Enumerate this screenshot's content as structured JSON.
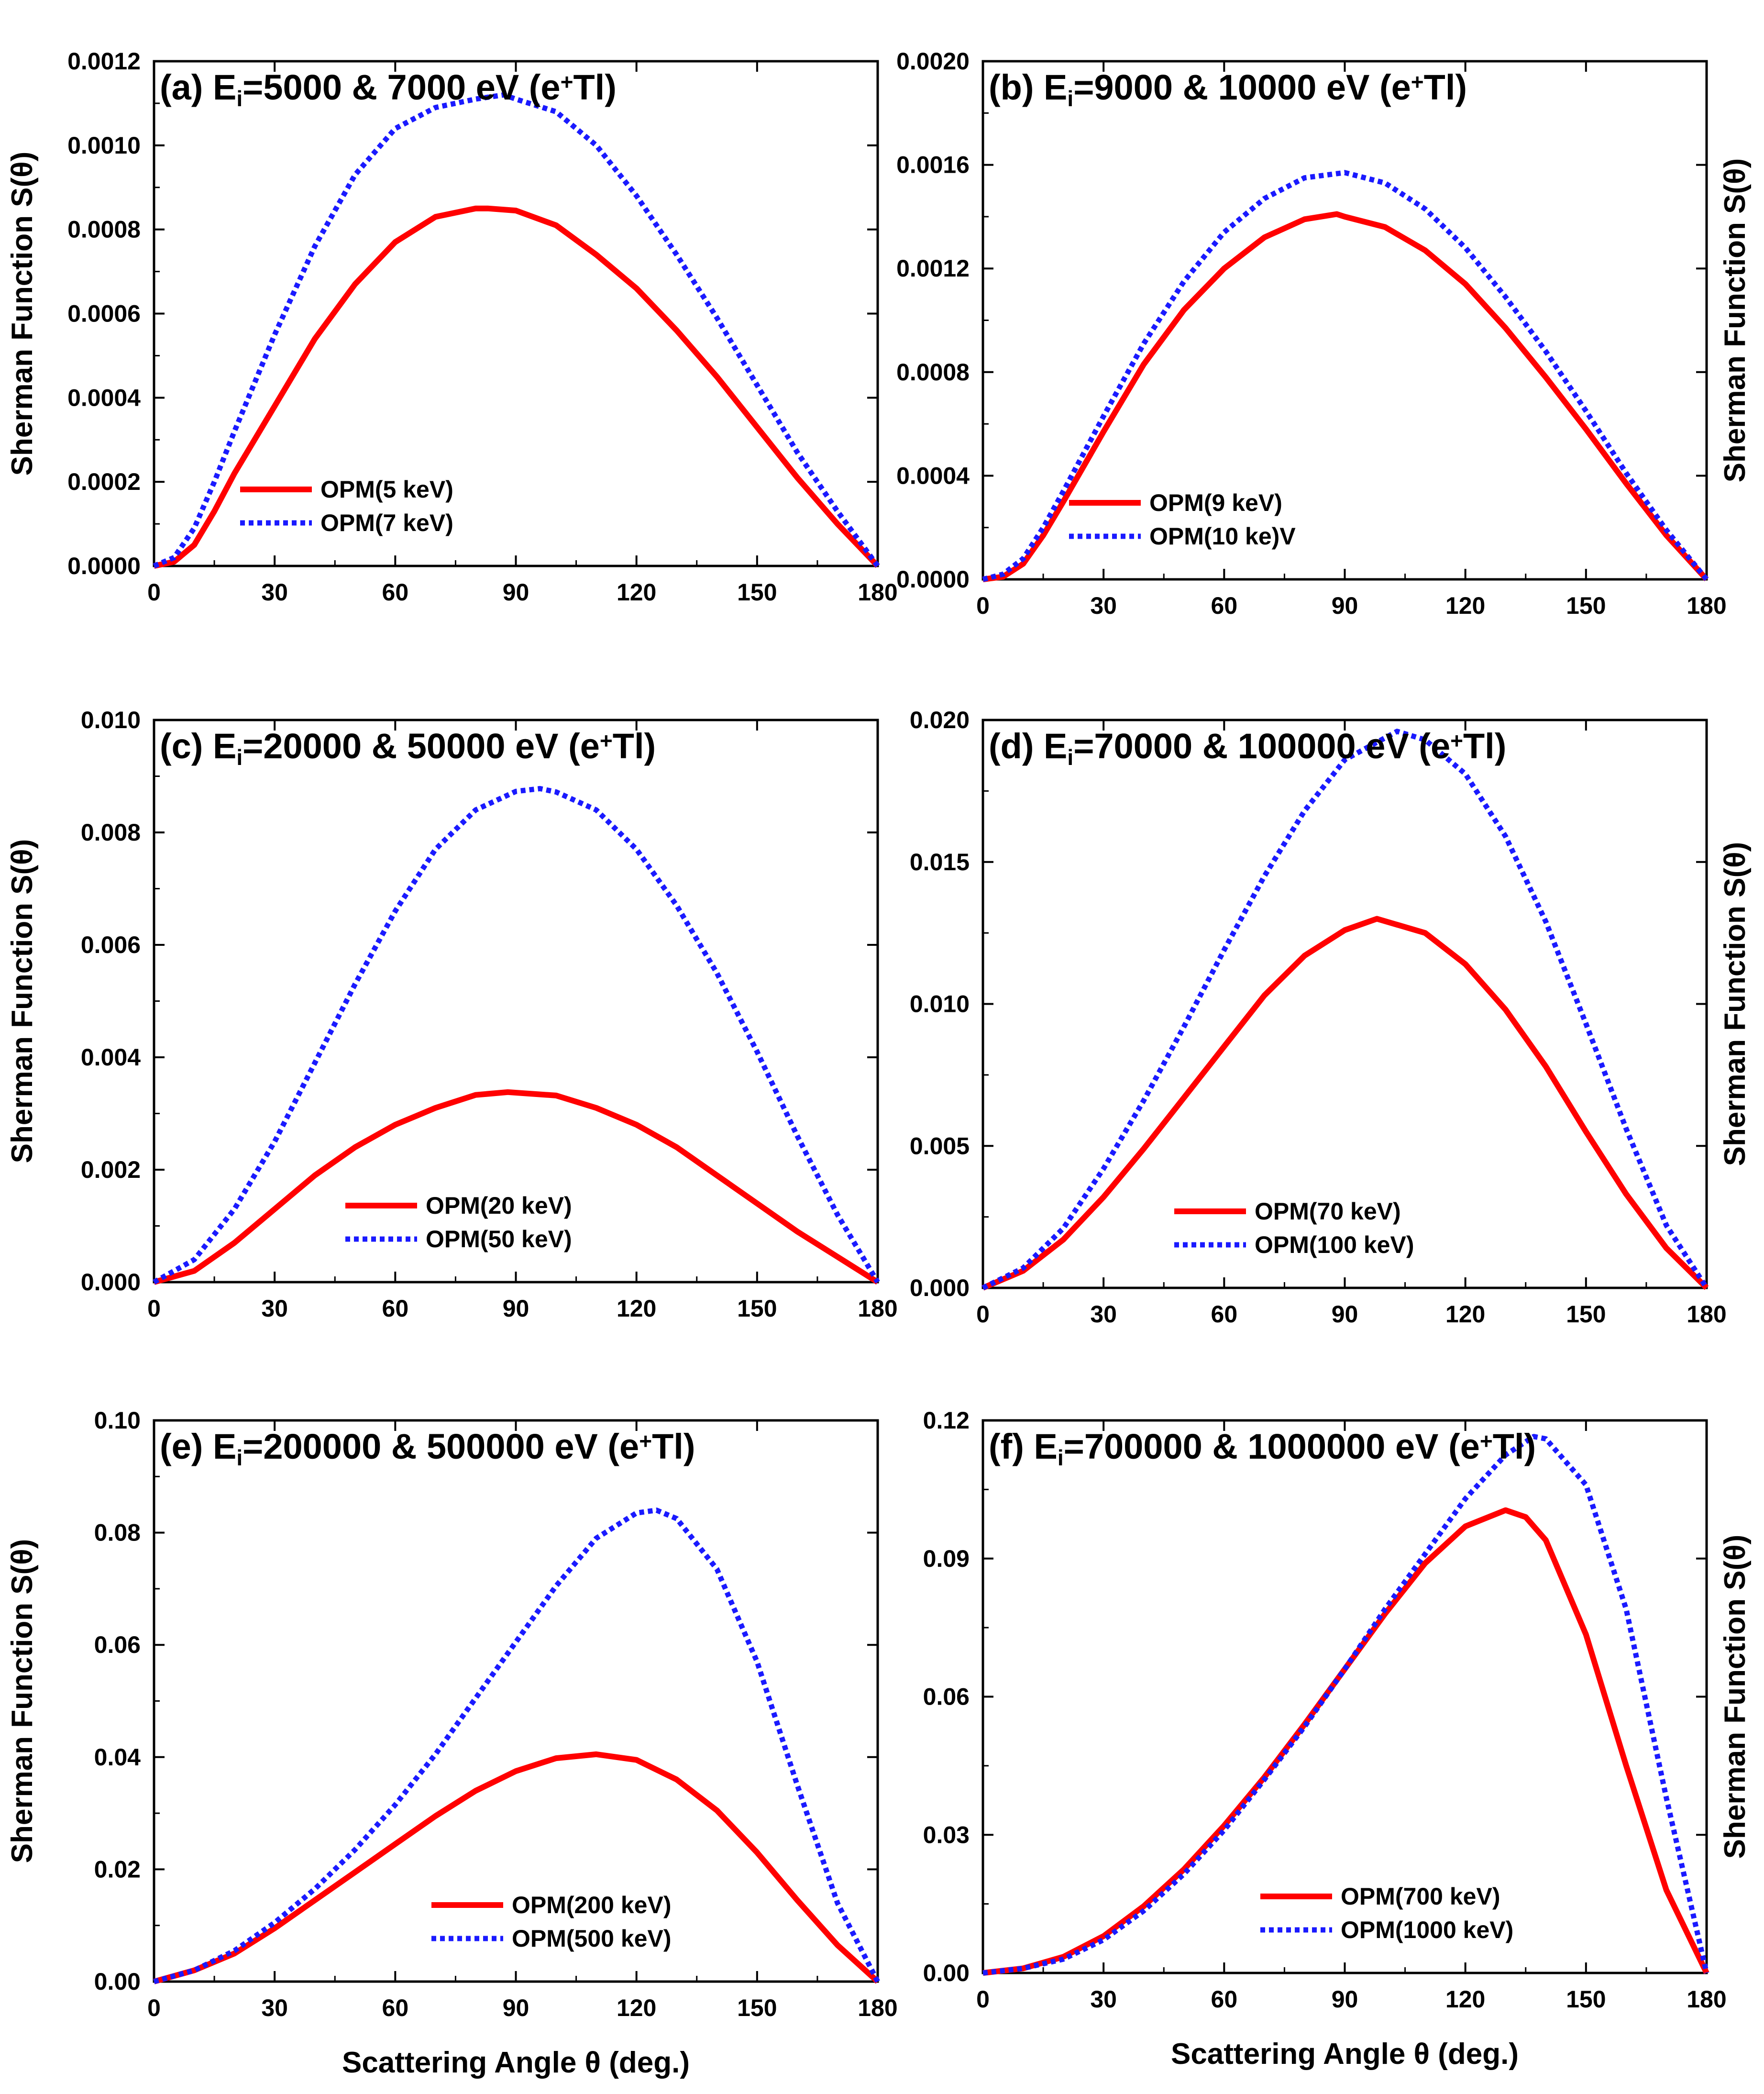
{
  "figure": {
    "shared_xlabel": "Scattering Angle θ (deg.)",
    "ylabel": "Sherman Function S(θ)"
  },
  "chart_data": [
    {
      "id": "a",
      "type": "line",
      "title_prefix": "(a) E",
      "title_sub": "i",
      "title_mid": "=5000 & 7000 eV (e",
      "title_sup": "+",
      "title_suffix": "Tl)",
      "xlabel": "",
      "ylabel": "Sherman Function S(θ)",
      "ylabel_side": "left",
      "xlim": [
        0,
        180
      ],
      "ylim": [
        0,
        0.0012
      ],
      "xticks": [
        "0",
        "30",
        "60",
        "90",
        "120",
        "150",
        "180"
      ],
      "yticks": [
        "0.0000",
        "0.0002",
        "0.0004",
        "0.0006",
        "0.0008",
        "0.0010",
        "0.0012"
      ],
      "legend_position": "lower-left",
      "series": [
        {
          "name": "OPM(5 keV)",
          "color": "#ff0000",
          "style": "solid",
          "x": [
            0,
            5,
            10,
            15,
            20,
            30,
            40,
            50,
            60,
            70,
            80,
            83,
            90,
            100,
            110,
            120,
            130,
            140,
            150,
            160,
            170,
            180
          ],
          "y": [
            0,
            1e-05,
            5e-05,
            0.00013,
            0.00022,
            0.00038,
            0.00054,
            0.00067,
            0.00077,
            0.00083,
            0.00085,
            0.00085,
            0.000845,
            0.00081,
            0.00074,
            0.00066,
            0.00056,
            0.00045,
            0.00033,
            0.00021,
            0.0001,
            0
          ]
        },
        {
          "name": "OPM(7 keV)",
          "color": "#1a1aff",
          "style": "dotted",
          "x": [
            0,
            5,
            10,
            15,
            20,
            30,
            40,
            50,
            60,
            70,
            80,
            87,
            90,
            100,
            110,
            120,
            130,
            140,
            150,
            160,
            170,
            180
          ],
          "y": [
            0,
            2e-05,
            9e-05,
            0.0002,
            0.00032,
            0.00055,
            0.00076,
            0.00093,
            0.00104,
            0.00109,
            0.00111,
            0.00112,
            0.00111,
            0.00108,
            0.001,
            0.00088,
            0.00074,
            0.00059,
            0.00043,
            0.00027,
            0.00013,
            0
          ]
        }
      ]
    },
    {
      "id": "b",
      "type": "line",
      "title_prefix": "(b) E",
      "title_sub": "i",
      "title_mid": "=9000 & 10000 eV (e",
      "title_sup": "+",
      "title_suffix": "Tl)",
      "xlabel": "",
      "ylabel": "Sherman Function S(θ)",
      "ylabel_side": "right",
      "xlim": [
        0,
        180
      ],
      "ylim": [
        0,
        0.002
      ],
      "xticks": [
        "0",
        "30",
        "60",
        "90",
        "120",
        "150",
        "180"
      ],
      "yticks": [
        "0.0000",
        "0.0004",
        "0.0008",
        "0.0012",
        "0.0016",
        "0.0020"
      ],
      "legend_position": "lower-left",
      "series": [
        {
          "name": "OPM(9 keV)",
          "color": "#ff0000",
          "style": "solid",
          "x": [
            0,
            5,
            10,
            15,
            20,
            30,
            40,
            50,
            60,
            70,
            80,
            88,
            90,
            100,
            110,
            120,
            130,
            140,
            150,
            160,
            170,
            180
          ],
          "y": [
            0,
            1e-05,
            6e-05,
            0.00017,
            0.0003,
            0.00057,
            0.00083,
            0.00104,
            0.0012,
            0.00132,
            0.00139,
            0.00141,
            0.0014,
            0.00136,
            0.00127,
            0.00114,
            0.00097,
            0.00078,
            0.00058,
            0.00037,
            0.00017,
            0
          ]
        },
        {
          "name": "OPM(10 ke)V",
          "color": "#1a1aff",
          "style": "dotted",
          "x": [
            0,
            5,
            10,
            15,
            20,
            30,
            40,
            50,
            60,
            70,
            80,
            90,
            100,
            110,
            120,
            130,
            140,
            150,
            160,
            170,
            180
          ],
          "y": [
            0,
            2e-05,
            8e-05,
            0.0002,
            0.00034,
            0.00063,
            0.00091,
            0.00115,
            0.00134,
            0.00147,
            0.00155,
            0.00157,
            0.00153,
            0.00143,
            0.00128,
            0.00109,
            0.00088,
            0.00065,
            0.00041,
            0.00019,
            0
          ]
        }
      ]
    },
    {
      "id": "c",
      "type": "line",
      "title_prefix": "(c) E",
      "title_sub": "i",
      "title_mid": "=20000 & 50000 eV (e",
      "title_sup": "+",
      "title_suffix": "Tl)",
      "xlabel": "",
      "ylabel": "Sherman Function S(θ)",
      "ylabel_side": "left",
      "xlim": [
        0,
        180
      ],
      "ylim": [
        0,
        0.01
      ],
      "xticks": [
        "0",
        "30",
        "60",
        "90",
        "120",
        "150",
        "180"
      ],
      "yticks": [
        "0.000",
        "0.002",
        "0.004",
        "0.006",
        "0.008",
        "0.010"
      ],
      "legend_position": "lower-center",
      "series": [
        {
          "name": "OPM(20 keV)",
          "color": "#ff0000",
          "style": "solid",
          "x": [
            0,
            10,
            20,
            30,
            40,
            50,
            60,
            70,
            80,
            88,
            100,
            110,
            120,
            130,
            140,
            150,
            160,
            170,
            180
          ],
          "y": [
            0,
            0.0002,
            0.0007,
            0.0013,
            0.0019,
            0.0024,
            0.0028,
            0.0031,
            0.00333,
            0.00338,
            0.00332,
            0.0031,
            0.0028,
            0.0024,
            0.0019,
            0.0014,
            0.0009,
            0.00045,
            0
          ]
        },
        {
          "name": "OPM(50 keV)",
          "color": "#1a1aff",
          "style": "dotted",
          "x": [
            0,
            10,
            20,
            30,
            40,
            50,
            60,
            70,
            80,
            90,
            96,
            100,
            110,
            120,
            130,
            140,
            150,
            160,
            170,
            180
          ],
          "y": [
            0,
            0.0004,
            0.0013,
            0.0025,
            0.0039,
            0.0053,
            0.0066,
            0.0077,
            0.0084,
            0.00873,
            0.00878,
            0.00872,
            0.0084,
            0.0077,
            0.0067,
            0.0055,
            0.0041,
            0.0026,
            0.0012,
            0
          ]
        }
      ]
    },
    {
      "id": "d",
      "type": "line",
      "title_prefix": "(d) E",
      "title_sub": "i",
      "title_mid": "=70000 & 100000 eV (e",
      "title_sup": "+",
      "title_suffix": "Tl)",
      "xlabel": "",
      "ylabel": "Sherman Function S(θ)",
      "ylabel_side": "right",
      "xlim": [
        0,
        180
      ],
      "ylim": [
        0,
        0.02
      ],
      "xticks": [
        "0",
        "30",
        "60",
        "90",
        "120",
        "150",
        "180"
      ],
      "yticks": [
        "0.000",
        "0.005",
        "0.010",
        "0.015",
        "0.020"
      ],
      "legend_position": "lower-center",
      "series": [
        {
          "name": "OPM(70 keV)",
          "color": "#ff0000",
          "style": "solid",
          "x": [
            0,
            10,
            20,
            30,
            40,
            50,
            60,
            70,
            80,
            90,
            98,
            110,
            120,
            130,
            140,
            150,
            160,
            170,
            180
          ],
          "y": [
            0,
            0.0006,
            0.0017,
            0.0032,
            0.0049,
            0.0067,
            0.0085,
            0.0103,
            0.0117,
            0.0126,
            0.013,
            0.0125,
            0.0114,
            0.0098,
            0.0078,
            0.0055,
            0.0033,
            0.0014,
            0
          ]
        },
        {
          "name": "OPM(100 keV)",
          "color": "#1a1aff",
          "style": "dotted",
          "x": [
            0,
            10,
            20,
            30,
            40,
            50,
            60,
            70,
            80,
            90,
            103,
            110,
            120,
            130,
            140,
            150,
            160,
            170,
            180
          ],
          "y": [
            0,
            0.0007,
            0.0021,
            0.0042,
            0.0066,
            0.0092,
            0.0119,
            0.0145,
            0.0168,
            0.0186,
            0.0196,
            0.0193,
            0.0181,
            0.0159,
            0.0129,
            0.0093,
            0.0056,
            0.0022,
            0
          ]
        }
      ]
    },
    {
      "id": "e",
      "type": "line",
      "title_prefix": "(e) E",
      "title_sub": "i",
      "title_mid": "=200000 & 500000 eV (e",
      "title_sup": "+",
      "title_suffix": "Tl)",
      "xlabel": "Scattering Angle θ (deg.)",
      "ylabel": "Sherman Function S(θ)",
      "ylabel_side": "left",
      "xlim": [
        0,
        180
      ],
      "ylim": [
        0,
        0.1
      ],
      "xticks": [
        "0",
        "30",
        "60",
        "90",
        "120",
        "150",
        "180"
      ],
      "yticks": [
        "0.00",
        "0.02",
        "0.04",
        "0.06",
        "0.08",
        "0.10"
      ],
      "legend_position": "lower-right",
      "series": [
        {
          "name": "OPM(200 keV)",
          "color": "#ff0000",
          "style": "solid",
          "x": [
            0,
            10,
            20,
            30,
            40,
            50,
            60,
            70,
            80,
            90,
            100,
            110,
            120,
            130,
            140,
            150,
            160,
            170,
            180
          ],
          "y": [
            0,
            0.002,
            0.005,
            0.0095,
            0.0145,
            0.0195,
            0.0245,
            0.0295,
            0.034,
            0.0375,
            0.0398,
            0.0405,
            0.0395,
            0.036,
            0.0305,
            0.023,
            0.0145,
            0.0065,
            0
          ]
        },
        {
          "name": "OPM(500 keV)",
          "color": "#1a1aff",
          "style": "dotted",
          "x": [
            0,
            10,
            20,
            30,
            40,
            50,
            60,
            70,
            80,
            90,
            100,
            110,
            120,
            125,
            130,
            140,
            150,
            160,
            170,
            180
          ],
          "y": [
            0,
            0.002,
            0.0055,
            0.0105,
            0.0165,
            0.0235,
            0.0315,
            0.0405,
            0.0505,
            0.0605,
            0.0705,
            0.079,
            0.0835,
            0.084,
            0.0825,
            0.0735,
            0.057,
            0.035,
            0.014,
            0
          ]
        }
      ]
    },
    {
      "id": "f",
      "type": "line",
      "title_prefix": "(f) E",
      "title_sub": "i",
      "title_mid": "=700000 & 1000000 eV (e",
      "title_sup": "+",
      "title_suffix": "Tl)",
      "xlabel": "Scattering Angle θ (deg.)",
      "ylabel": "Sherman Function S(θ)",
      "ylabel_side": "right",
      "xlim": [
        0,
        180
      ],
      "ylim": [
        0,
        0.12
      ],
      "xticks": [
        "0",
        "30",
        "60",
        "90",
        "120",
        "150",
        "180"
      ],
      "yticks": [
        "0.00",
        "0.03",
        "0.06",
        "0.09",
        "0.12"
      ],
      "legend_position": "lower-right",
      "series": [
        {
          "name": "OPM(700 keV)",
          "color": "#ff0000",
          "style": "solid",
          "x": [
            0,
            10,
            20,
            30,
            40,
            50,
            60,
            70,
            80,
            90,
            100,
            110,
            120,
            130,
            135,
            140,
            150,
            160,
            170,
            180
          ],
          "y": [
            0,
            0.001,
            0.0035,
            0.008,
            0.0145,
            0.0225,
            0.032,
            0.0425,
            0.054,
            0.066,
            0.078,
            0.089,
            0.097,
            0.1005,
            0.099,
            0.094,
            0.0735,
            0.045,
            0.018,
            0
          ]
        },
        {
          "name": "OPM(1000 keV)",
          "color": "#1a1aff",
          "style": "dotted",
          "x": [
            0,
            10,
            20,
            30,
            40,
            50,
            60,
            70,
            80,
            90,
            100,
            110,
            120,
            130,
            137,
            140,
            150,
            160,
            170,
            180
          ],
          "y": [
            0,
            0.001,
            0.003,
            0.0072,
            0.0135,
            0.0215,
            0.031,
            0.042,
            0.0535,
            0.066,
            0.079,
            0.091,
            0.103,
            0.1125,
            0.1165,
            0.116,
            0.106,
            0.079,
            0.038,
            0
          ]
        }
      ]
    }
  ]
}
